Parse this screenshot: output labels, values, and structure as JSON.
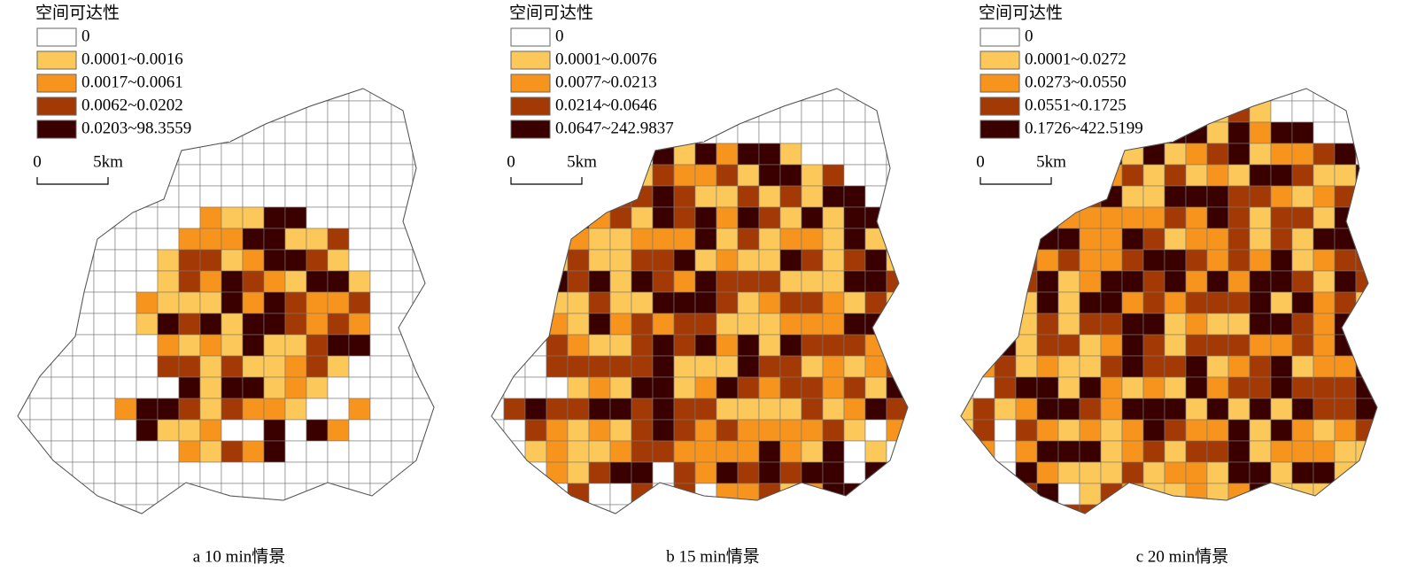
{
  "panels": [
    {
      "legend_title": "空间可达性",
      "legend": [
        {
          "label": "0",
          "color": "#ffffff"
        },
        {
          "label": "0.0001~0.0016",
          "color": "#fcc85a"
        },
        {
          "label": "0.0017~0.0061",
          "color": "#f7941d"
        },
        {
          "label": "0.0062~0.0202",
          "color": "#a33a05"
        },
        {
          "label": "0.0203~98.3559",
          "color": "#3a0000"
        }
      ],
      "scale": {
        "start": "0",
        "end": "5km"
      },
      "caption": "a 10 min情景"
    },
    {
      "legend_title": "空间可达性",
      "legend": [
        {
          "label": "0",
          "color": "#ffffff"
        },
        {
          "label": "0.0001~0.0076",
          "color": "#fcc85a"
        },
        {
          "label": "0.0077~0.0213",
          "color": "#f7941d"
        },
        {
          "label": "0.0214~0.0646",
          "color": "#a33a05"
        },
        {
          "label": "0.0647~242.9837",
          "color": "#3a0000"
        }
      ],
      "scale": {
        "start": "0",
        "end": "5km"
      },
      "caption": "b 15 min情景"
    },
    {
      "legend_title": "空间可达性",
      "legend": [
        {
          "label": "0",
          "color": "#ffffff"
        },
        {
          "label": "0.0001~0.0272",
          "color": "#fcc85a"
        },
        {
          "label": "0.0273~0.0550",
          "color": "#f7941d"
        },
        {
          "label": "0.0551~0.1725",
          "color": "#a33a05"
        },
        {
          "label": "0.1726~422.5199",
          "color": "#3a0000"
        }
      ],
      "scale": {
        "start": "0",
        "end": "5km"
      },
      "caption": "c 20 min情景"
    }
  ]
}
